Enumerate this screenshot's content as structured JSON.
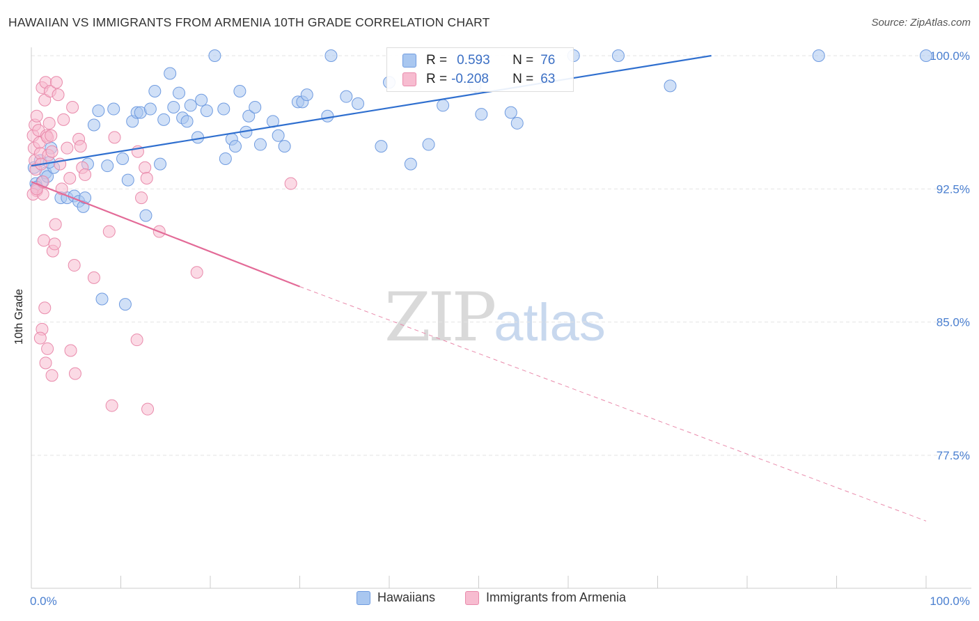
{
  "header": {
    "title": "HAWAIIAN VS IMMIGRANTS FROM ARMENIA 10TH GRADE CORRELATION CHART",
    "source": "Source: ZipAtlas.com"
  },
  "watermark": {
    "zip": "ZIP",
    "atlas": "atlas"
  },
  "stats": {
    "rows": [
      {
        "r_label": "R =",
        "r_value": "0.593",
        "n_label": "N =",
        "n_value": "76",
        "color": "#a9c7f0",
        "border": "#6f9be0"
      },
      {
        "r_label": "R =",
        "r_value": "-0.208",
        "n_label": "N =",
        "n_value": "63",
        "color": "#f7bcd0",
        "border": "#e98aab"
      }
    ]
  },
  "legend": {
    "items": [
      {
        "label": "Hawaiians",
        "color": "#a9c7f0",
        "border": "#6f9be0"
      },
      {
        "label": "Immigrants from Armenia",
        "color": "#f7bcd0",
        "border": "#e98aab"
      }
    ]
  },
  "chart_data": {
    "type": "scatter",
    "title": "HAWAIIAN VS IMMIGRANTS FROM ARMENIA 10TH GRADE CORRELATION CHART",
    "ylabel": "10th Grade",
    "xlabel": "",
    "xlim": [
      0,
      100
    ],
    "ylim": [
      70.0,
      101.0
    ],
    "x_tick_labels": [
      "0.0%",
      "100.0%"
    ],
    "y_ticks": [
      77.5,
      85.0,
      92.5,
      100.0
    ],
    "y_tick_labels": [
      "77.5%",
      "85.0%",
      "92.5%",
      "100.0%"
    ],
    "grid": true,
    "legend_position": "bottom-center",
    "series": [
      {
        "name": "Hawaiians",
        "color": "#6f9be0",
        "fill": "#a9c7f0",
        "trend": {
          "x": [
            0,
            76.0
          ],
          "y": [
            93.8,
            100.0
          ],
          "style": "solid"
        },
        "points": [
          [
            0.3,
            93.7
          ],
          [
            0.5,
            92.8
          ],
          [
            1.0,
            94.1
          ],
          [
            1.2,
            92.9
          ],
          [
            1.6,
            93.4
          ],
          [
            1.8,
            93.2
          ],
          [
            2.2,
            94.8
          ],
          [
            2.5,
            93.7
          ],
          [
            3.3,
            92.0
          ],
          [
            4.0,
            92.0
          ],
          [
            4.8,
            92.1
          ],
          [
            5.3,
            91.8
          ],
          [
            5.8,
            91.5
          ],
          [
            6.3,
            93.9
          ],
          [
            7.0,
            96.1
          ],
          [
            7.5,
            96.9
          ],
          [
            7.9,
            86.3
          ],
          [
            8.5,
            93.8
          ],
          [
            9.2,
            97.0
          ],
          [
            10.2,
            94.2
          ],
          [
            10.5,
            86.0
          ],
          [
            10.8,
            93.0
          ],
          [
            11.3,
            96.3
          ],
          [
            11.8,
            96.8
          ],
          [
            12.2,
            96.8
          ],
          [
            12.8,
            91.0
          ],
          [
            13.3,
            97.0
          ],
          [
            13.8,
            98.0
          ],
          [
            14.4,
            93.9
          ],
          [
            14.8,
            96.4
          ],
          [
            15.5,
            99.0
          ],
          [
            15.9,
            97.1
          ],
          [
            16.5,
            97.9
          ],
          [
            16.9,
            96.5
          ],
          [
            17.4,
            96.3
          ],
          [
            17.8,
            97.2
          ],
          [
            18.6,
            95.4
          ],
          [
            19.0,
            97.5
          ],
          [
            19.6,
            96.9
          ],
          [
            20.5,
            100.0
          ],
          [
            21.5,
            97.0
          ],
          [
            21.7,
            94.2
          ],
          [
            22.4,
            95.3
          ],
          [
            22.8,
            94.9
          ],
          [
            23.3,
            98.0
          ],
          [
            24.0,
            95.7
          ],
          [
            24.3,
            96.6
          ],
          [
            25.0,
            97.1
          ],
          [
            25.6,
            95.0
          ],
          [
            27.0,
            96.3
          ],
          [
            27.6,
            95.5
          ],
          [
            28.3,
            94.9
          ],
          [
            29.8,
            97.4
          ],
          [
            30.3,
            97.4
          ],
          [
            30.8,
            97.8
          ],
          [
            33.1,
            96.6
          ],
          [
            33.5,
            100.0
          ],
          [
            35.2,
            97.7
          ],
          [
            36.5,
            97.3
          ],
          [
            39.1,
            94.9
          ],
          [
            40.0,
            98.5
          ],
          [
            42.4,
            93.9
          ],
          [
            44.4,
            95.0
          ],
          [
            46.0,
            97.2
          ],
          [
            49.6,
            98.3
          ],
          [
            50.3,
            96.7
          ],
          [
            53.6,
            96.8
          ],
          [
            54.3,
            96.2
          ],
          [
            60.6,
            100.0
          ],
          [
            65.6,
            100.0
          ],
          [
            71.4,
            98.3
          ],
          [
            88.0,
            100.0
          ],
          [
            100.0,
            100.0
          ],
          [
            0.6,
            92.6
          ],
          [
            6.0,
            92.0
          ],
          [
            2.0,
            94.0
          ]
        ]
      },
      {
        "name": "Immigrants from Armenia",
        "color": "#e98aab",
        "fill": "#f7bcd0",
        "trend": {
          "x": [
            0,
            30.0
          ],
          "y": [
            92.9,
            87.0
          ],
          "style": "solid"
        },
        "trend_extension": {
          "x": [
            30.0,
            100.0
          ],
          "y": [
            87.0,
            73.8
          ],
          "style": "dashed"
        },
        "points": [
          [
            0.2,
            95.5
          ],
          [
            0.3,
            94.8
          ],
          [
            0.4,
            94.1
          ],
          [
            0.5,
            93.6
          ],
          [
            0.6,
            92.4
          ],
          [
            0.2,
            92.2
          ],
          [
            0.4,
            96.1
          ],
          [
            0.6,
            96.6
          ],
          [
            0.8,
            95.8
          ],
          [
            0.9,
            95.1
          ],
          [
            1.0,
            94.5
          ],
          [
            1.1,
            93.9
          ],
          [
            1.2,
            98.2
          ],
          [
            1.3,
            92.2
          ],
          [
            1.4,
            89.6
          ],
          [
            1.5,
            97.5
          ],
          [
            1.6,
            98.5
          ],
          [
            1.7,
            95.5
          ],
          [
            1.8,
            95.4
          ],
          [
            1.9,
            94.4
          ],
          [
            2.0,
            96.2
          ],
          [
            2.1,
            98.0
          ],
          [
            2.2,
            95.5
          ],
          [
            2.3,
            94.6
          ],
          [
            2.4,
            89.0
          ],
          [
            2.6,
            89.4
          ],
          [
            2.7,
            90.5
          ],
          [
            2.8,
            98.5
          ],
          [
            3.0,
            97.8
          ],
          [
            3.2,
            93.9
          ],
          [
            3.4,
            92.5
          ],
          [
            3.6,
            96.4
          ],
          [
            4.0,
            94.8
          ],
          [
            4.3,
            93.1
          ],
          [
            4.6,
            97.1
          ],
          [
            4.8,
            88.2
          ],
          [
            5.3,
            95.3
          ],
          [
            5.5,
            94.9
          ],
          [
            5.7,
            93.7
          ],
          [
            6.0,
            93.3
          ],
          [
            7.0,
            87.5
          ],
          [
            8.7,
            90.1
          ],
          [
            9.3,
            95.4
          ],
          [
            11.9,
            94.6
          ],
          [
            12.3,
            92.0
          ],
          [
            12.7,
            93.7
          ],
          [
            12.9,
            93.1
          ],
          [
            14.3,
            90.1
          ],
          [
            18.5,
            87.8
          ],
          [
            29.0,
            92.8
          ],
          [
            1.5,
            85.8
          ],
          [
            1.2,
            84.6
          ],
          [
            1.0,
            84.1
          ],
          [
            1.8,
            83.5
          ],
          [
            1.6,
            82.7
          ],
          [
            2.3,
            82.0
          ],
          [
            4.4,
            83.4
          ],
          [
            4.9,
            82.1
          ],
          [
            9.0,
            80.3
          ],
          [
            11.8,
            84.0
          ],
          [
            13.0,
            80.1
          ],
          [
            0.6,
            92.5
          ],
          [
            1.3,
            92.9
          ]
        ]
      }
    ]
  }
}
